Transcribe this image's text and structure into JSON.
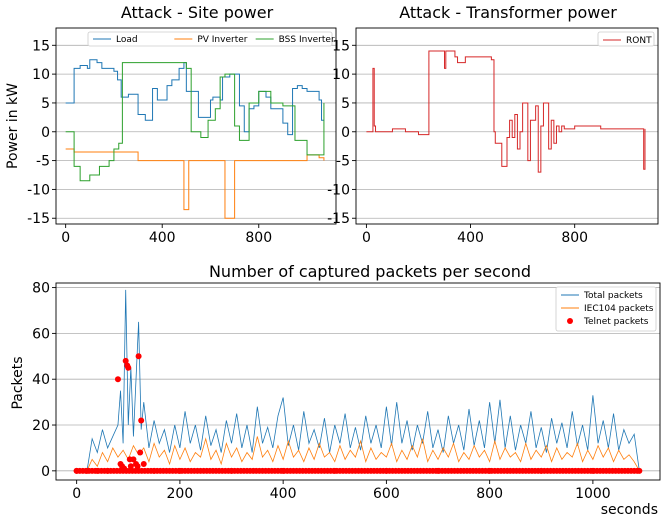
{
  "chart_data": [
    {
      "type": "line",
      "title": "Attack - Site power",
      "xlabel": "",
      "ylabel": "Power in kW",
      "xlim": [
        -40,
        1120
      ],
      "ylim": [
        -16,
        18
      ],
      "xticks": [
        0,
        400,
        800
      ],
      "yticks": [
        -15,
        -10,
        -5,
        0,
        5,
        10,
        15
      ],
      "grid": "horizontal",
      "legend": "top-right, horizontal",
      "series": [
        {
          "name": "Load",
          "color": "#1f77b4",
          "x": [
            0,
            30,
            35,
            60,
            90,
            100,
            130,
            150,
            200,
            215,
            230,
            260,
            300,
            330,
            360,
            380,
            420,
            440,
            470,
            490,
            500,
            550,
            600,
            610,
            640,
            650,
            680,
            700,
            720,
            740,
            760,
            780,
            800,
            830,
            850,
            900,
            920,
            940,
            960,
            980,
            1000,
            1050,
            1060,
            1070
          ],
          "y": [
            5,
            5,
            11,
            11.5,
            11,
            12.5,
            12,
            11,
            10.5,
            9,
            6,
            6.5,
            3,
            2,
            7.5,
            5.5,
            8,
            9,
            11,
            12,
            7,
            2.5,
            5.5,
            6,
            5.5,
            9.5,
            10,
            10,
            4.5,
            0,
            4,
            4.5,
            7,
            6,
            4,
            1.5,
            -0.5,
            7.5,
            8,
            7.5,
            7,
            5.5,
            2,
            2
          ]
        },
        {
          "name": "PV Inverter",
          "color": "#ff7f0e",
          "x": [
            0,
            30,
            35,
            100,
            200,
            300,
            480,
            490,
            510,
            600,
            650,
            660,
            700,
            720,
            800,
            1000,
            1050,
            1070
          ],
          "y": [
            -3,
            -3,
            -3.5,
            -3.5,
            -3.5,
            -5,
            -5,
            -13.5,
            -5,
            -5,
            -5,
            -15,
            -5,
            -5,
            -5,
            -4,
            -4.5,
            -5
          ]
        },
        {
          "name": "BSS Inverter",
          "color": "#2ca02c",
          "x": [
            0,
            30,
            35,
            60,
            80,
            100,
            140,
            180,
            200,
            220,
            235,
            280,
            310,
            350,
            400,
            450,
            500,
            520,
            560,
            590,
            620,
            640,
            660,
            680,
            700,
            720,
            760,
            800,
            850,
            900,
            950,
            1000,
            1060,
            1070
          ],
          "y": [
            0,
            0,
            -6,
            -8.5,
            -8.5,
            -7.5,
            -6,
            -5,
            -3,
            -2,
            12,
            12,
            12,
            12,
            12,
            12,
            11,
            0,
            -1,
            2,
            4,
            9.5,
            10,
            10,
            1,
            -1.5,
            5,
            7,
            5,
            4.5,
            -1.5,
            -4,
            -4,
            5
          ]
        }
      ]
    },
    {
      "type": "line",
      "title": "Attack - Transformer power",
      "xlabel": "",
      "ylabel": "",
      "xlim": [
        -40,
        1120
      ],
      "ylim": [
        -16,
        18
      ],
      "xticks": [
        0,
        400,
        800
      ],
      "yticks": [
        -15,
        -10,
        -5,
        0,
        5,
        10,
        15
      ],
      "grid": "horizontal",
      "legend": "top-right",
      "series": [
        {
          "name": "RONT",
          "color": "#d62728",
          "x": [
            0,
            20,
            25,
            30,
            35,
            100,
            150,
            200,
            240,
            245,
            300,
            305,
            340,
            350,
            380,
            420,
            480,
            490,
            495,
            520,
            540,
            550,
            560,
            570,
            580,
            590,
            600,
            620,
            630,
            650,
            660,
            670,
            680,
            700,
            710,
            720,
            730,
            740,
            750,
            760,
            800,
            900,
            1000,
            1060,
            1065,
            1070
          ],
          "y": [
            0,
            0,
            11,
            1,
            0,
            0.5,
            0,
            -0.5,
            14,
            14,
            11,
            14,
            13,
            12,
            13,
            13,
            12.5,
            0,
            -2,
            -6,
            -1,
            2,
            -1,
            3,
            -3,
            0,
            5,
            -5,
            2,
            4.5,
            -7,
            1,
            5,
            -3,
            2,
            -2,
            1,
            0,
            1,
            0.5,
            1,
            0.5,
            0.5,
            0.5,
            -6.5,
            0.5
          ]
        }
      ]
    },
    {
      "type": "line",
      "title": "Number of captured packets per second",
      "xlabel": "seconds",
      "ylabel": "Packets",
      "xlim": [
        -40,
        1130
      ],
      "ylim": [
        -4,
        82
      ],
      "xticks": [
        0,
        200,
        400,
        600,
        800,
        1000
      ],
      "yticks": [
        0,
        20,
        40,
        60,
        80
      ],
      "grid": "horizontal",
      "legend": "top-right",
      "series": [
        {
          "name": "Total packets",
          "color": "#1f77b4",
          "x": [
            0,
            10,
            20,
            30,
            40,
            50,
            60,
            70,
            80,
            85,
            90,
            95,
            100,
            105,
            110,
            115,
            120,
            125,
            130,
            140,
            150,
            160,
            170,
            180,
            190,
            200,
            210,
            220,
            230,
            240,
            250,
            260,
            270,
            280,
            290,
            300,
            310,
            320,
            330,
            340,
            350,
            360,
            370,
            380,
            390,
            400,
            410,
            420,
            430,
            440,
            450,
            460,
            470,
            480,
            490,
            500,
            510,
            520,
            530,
            540,
            550,
            560,
            570,
            580,
            590,
            600,
            610,
            620,
            630,
            640,
            650,
            660,
            670,
            680,
            690,
            700,
            710,
            720,
            730,
            740,
            750,
            760,
            770,
            780,
            790,
            800,
            810,
            820,
            830,
            840,
            850,
            860,
            870,
            880,
            890,
            900,
            910,
            920,
            930,
            940,
            950,
            960,
            970,
            980,
            990,
            1000,
            1010,
            1020,
            1030,
            1040,
            1050,
            1060,
            1070,
            1080,
            1090
          ],
          "y": [
            0,
            0,
            0,
            14,
            8,
            18,
            10,
            15,
            20,
            35,
            12,
            79,
            20,
            45,
            15,
            40,
            65,
            18,
            30,
            10,
            22,
            12,
            18,
            8,
            20,
            10,
            26,
            12,
            20,
            9,
            24,
            11,
            18,
            8,
            22,
            12,
            25,
            10,
            20,
            8,
            28,
            12,
            19,
            10,
            24,
            32,
            11,
            20,
            9,
            26,
            12,
            18,
            10,
            23,
            8,
            20,
            12,
            25,
            10,
            19,
            9,
            24,
            12,
            20,
            10,
            28,
            11,
            30,
            12,
            22,
            9,
            20,
            12,
            26,
            10,
            18,
            8,
            24,
            12,
            20,
            9,
            27,
            11,
            22,
            10,
            30,
            12,
            31,
            10,
            24,
            9,
            20,
            12,
            26,
            10,
            19,
            8,
            23,
            12,
            21,
            10,
            26,
            11,
            20,
            9,
            33,
            12,
            22,
            10,
            25,
            9,
            18,
            12,
            16,
            0
          ]
        },
        {
          "name": "IEC104 packets",
          "color": "#ff7f0e",
          "x": [
            0,
            10,
            20,
            30,
            40,
            50,
            60,
            70,
            80,
            90,
            100,
            110,
            120,
            130,
            140,
            150,
            160,
            170,
            180,
            190,
            200,
            210,
            220,
            230,
            240,
            250,
            260,
            270,
            280,
            290,
            300,
            310,
            320,
            330,
            340,
            350,
            360,
            370,
            380,
            390,
            400,
            410,
            420,
            430,
            440,
            450,
            460,
            470,
            480,
            490,
            500,
            510,
            520,
            530,
            540,
            550,
            560,
            570,
            580,
            590,
            600,
            610,
            620,
            630,
            640,
            650,
            660,
            670,
            680,
            690,
            700,
            710,
            720,
            730,
            740,
            750,
            760,
            770,
            780,
            790,
            800,
            810,
            820,
            830,
            840,
            850,
            860,
            870,
            880,
            890,
            900,
            910,
            920,
            930,
            940,
            950,
            960,
            970,
            980,
            990,
            1000,
            1010,
            1020,
            1030,
            1040,
            1050,
            1060,
            1070,
            1080,
            1090
          ],
          "y": [
            0,
            0,
            0,
            5,
            2,
            8,
            4,
            10,
            6,
            9,
            5,
            11,
            7,
            10,
            4,
            12,
            6,
            9,
            3,
            11,
            5,
            10,
            4,
            8,
            6,
            14,
            5,
            9,
            3,
            12,
            6,
            10,
            4,
            8,
            5,
            15,
            6,
            9,
            4,
            11,
            5,
            13,
            6,
            9,
            4,
            10,
            5,
            12,
            6,
            8,
            4,
            11,
            5,
            9,
            6,
            13,
            4,
            10,
            5,
            8,
            6,
            12,
            4,
            9,
            5,
            11,
            6,
            14,
            4,
            9,
            5,
            10,
            6,
            12,
            4,
            8,
            5,
            11,
            6,
            9,
            4,
            13,
            5,
            10,
            6,
            8,
            4,
            12,
            5,
            9,
            6,
            11,
            4,
            10,
            5,
            8,
            6,
            12,
            4,
            9,
            5,
            11,
            6,
            10,
            4,
            9,
            5,
            7,
            4,
            0
          ]
        },
        {
          "name": "Telnet packets",
          "color": "#ff0000",
          "marker": "dot",
          "x": [
            0,
            20,
            40,
            60,
            80,
            85,
            88,
            92,
            95,
            98,
            100,
            103,
            105,
            110,
            115,
            118,
            120,
            123,
            125,
            130,
            150,
            200,
            300,
            400,
            500,
            600,
            700,
            800,
            900,
            1000,
            1090
          ],
          "y": [
            0,
            0,
            0,
            0,
            40,
            3,
            2,
            1,
            48,
            46,
            45,
            5,
            2,
            5,
            3,
            2,
            50,
            8,
            22,
            3,
            0,
            0,
            0,
            0,
            0,
            0,
            0,
            0,
            0,
            0,
            0
          ]
        }
      ]
    }
  ]
}
